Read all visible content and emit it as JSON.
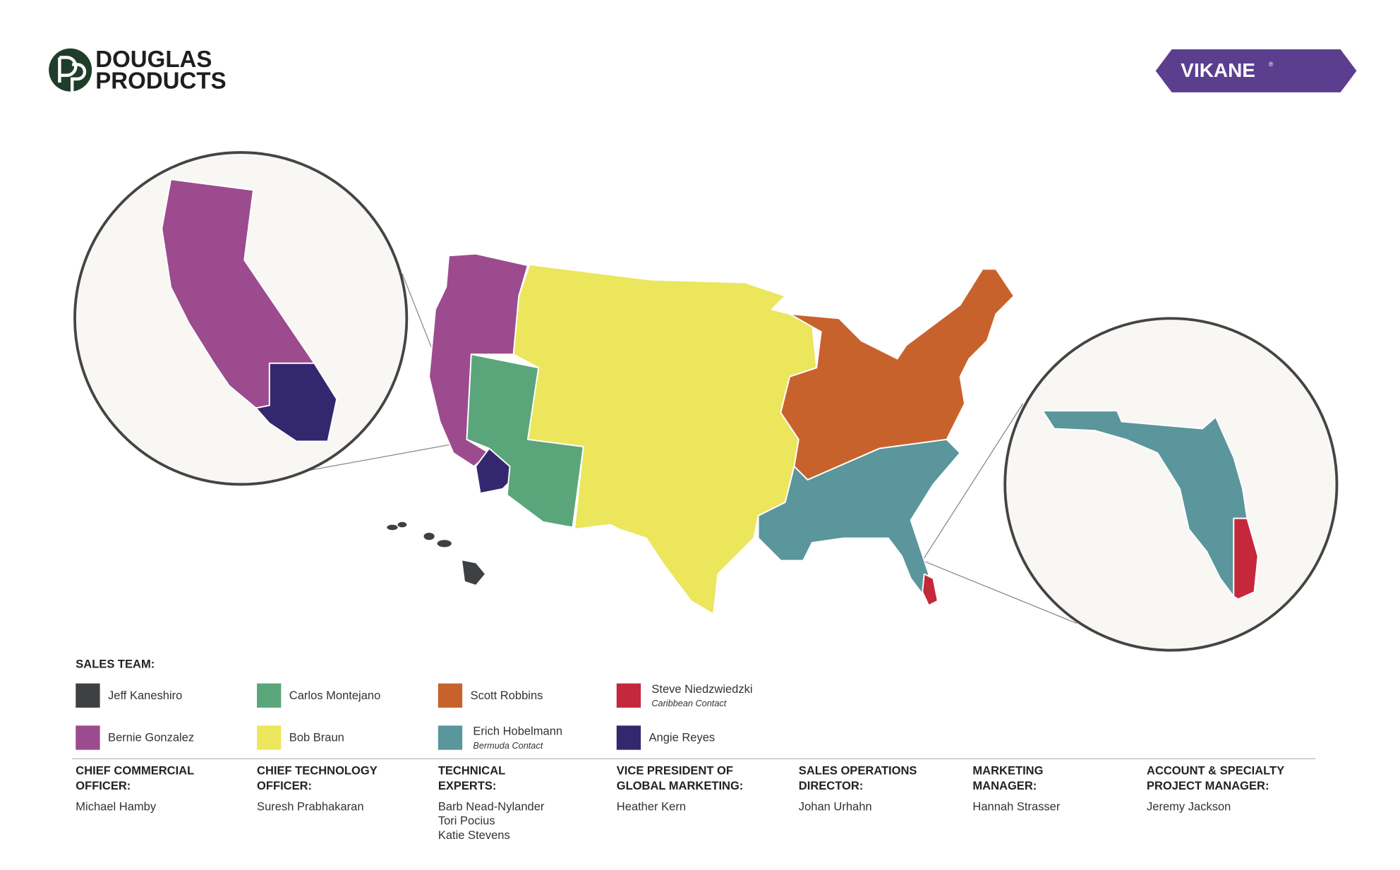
{
  "header": {
    "logo_line1": "DOUGLAS",
    "logo_line2": "PRODUCTS",
    "brand": "VIKANE",
    "brand_mark": "®"
  },
  "legend": {
    "title": "SALES TEAM:",
    "items": [
      {
        "name": "Jeff Kaneshiro",
        "color": "#3e4043"
      },
      {
        "name": "Carlos Montejano",
        "color": "#5aa67a"
      },
      {
        "name": "Scott Robbins",
        "color": "#c8622c"
      },
      {
        "name": "Steve Niedzwiedzki",
        "note": "Caribbean Contact",
        "color": "#c4283a"
      },
      {
        "name": "Bernie Gonzalez",
        "color": "#9c4b8e"
      },
      {
        "name": "Bob Braun",
        "color": "#ebe65c"
      },
      {
        "name": "Erich Hobelmann",
        "note": "Bermuda Contact",
        "color": "#5a969c"
      },
      {
        "name": "Angie Reyes",
        "color": "#33286e"
      }
    ]
  },
  "contacts": [
    {
      "title": [
        "CHIEF COMMERCIAL",
        "OFFICER:"
      ],
      "names": [
        "Michael Hamby"
      ]
    },
    {
      "title": [
        "CHIEF TECHNOLOGY",
        "OFFICER:"
      ],
      "names": [
        "Suresh Prabhakaran"
      ]
    },
    {
      "title": [
        "TECHNICAL",
        "EXPERTS:"
      ],
      "names": [
        "Barb Nead-Nylander",
        "Tori Pocius",
        "Katie Stevens"
      ]
    },
    {
      "title": [
        "VICE PRESIDENT OF",
        "GLOBAL MARKETING:"
      ],
      "names": [
        "Heather Kern"
      ]
    },
    {
      "title": [
        "SALES OPERATIONS",
        "DIRECTOR:"
      ],
      "names": [
        "Johan Urhahn"
      ]
    },
    {
      "title": [
        "MARKETING",
        "MANAGER:"
      ],
      "names": [
        "Hannah Strasser"
      ]
    },
    {
      "title": [
        "ACCOUNT & SPECIALTY",
        "PROJECT MANAGER:"
      ],
      "names": [
        "Jeremy Jackson"
      ]
    }
  ]
}
